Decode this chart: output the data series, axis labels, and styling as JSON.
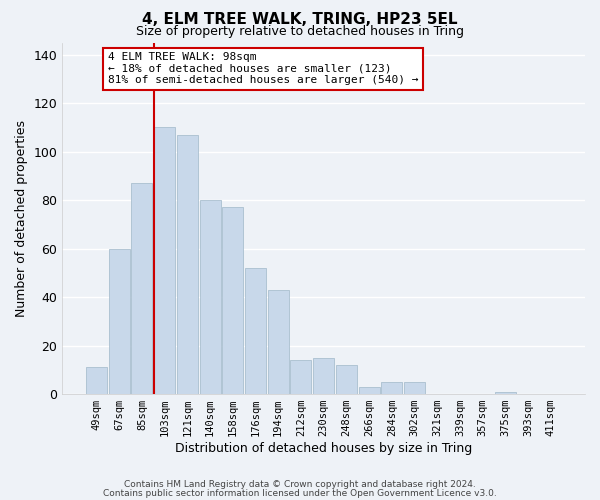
{
  "title": "4, ELM TREE WALK, TRING, HP23 5EL",
  "subtitle": "Size of property relative to detached houses in Tring",
  "xlabel": "Distribution of detached houses by size in Tring",
  "ylabel": "Number of detached properties",
  "bar_labels": [
    "49sqm",
    "67sqm",
    "85sqm",
    "103sqm",
    "121sqm",
    "140sqm",
    "158sqm",
    "176sqm",
    "194sqm",
    "212sqm",
    "230sqm",
    "248sqm",
    "266sqm",
    "284sqm",
    "302sqm",
    "321sqm",
    "339sqm",
    "357sqm",
    "375sqm",
    "393sqm",
    "411sqm"
  ],
  "bar_values": [
    11,
    60,
    87,
    110,
    107,
    80,
    77,
    52,
    43,
    14,
    15,
    12,
    3,
    5,
    5,
    0,
    0,
    0,
    1,
    0,
    0
  ],
  "bar_color": "#c8d8ea",
  "bar_edge_color": "#aabfcf",
  "vline_color": "#cc0000",
  "ylim": [
    0,
    145
  ],
  "yticks": [
    0,
    20,
    40,
    60,
    80,
    100,
    120,
    140
  ],
  "annotation_title": "4 ELM TREE WALK: 98sqm",
  "annotation_line1": "← 18% of detached houses are smaller (123)",
  "annotation_line2": "81% of semi-detached houses are larger (540) →",
  "annotation_box_color": "#ffffff",
  "annotation_box_edge": "#cc0000",
  "footer1": "Contains HM Land Registry data © Crown copyright and database right 2024.",
  "footer2": "Contains public sector information licensed under the Open Government Licence v3.0.",
  "background_color": "#eef2f7",
  "grid_color": "#ffffff"
}
